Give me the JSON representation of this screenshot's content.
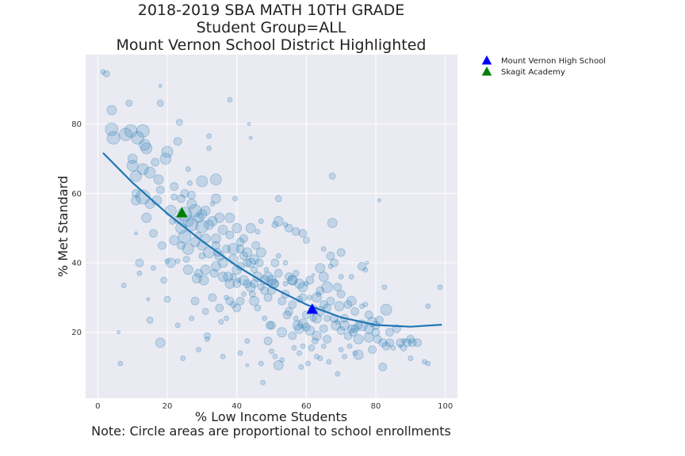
{
  "chart_data": {
    "type": "scatter",
    "title": [
      "2018-2019 SBA MATH 10TH GRADE",
      "Student Group=ALL",
      "Mount Vernon School District Highlighted"
    ],
    "xlabel": "% Low Income Students",
    "footnote": "Note: Circle areas are proportional to school enrollments",
    "ylabel": "% Met Standard",
    "xlim": [
      -3.5,
      103.5
    ],
    "ylim": [
      1,
      100
    ],
    "xticks": [
      0,
      20,
      40,
      60,
      80,
      100
    ],
    "yticks": [
      20,
      40,
      60,
      80
    ],
    "grid": true,
    "point_color": "#1f77b4",
    "trend_color": "#1f77b4",
    "background": "#eaeaf2",
    "trend_line": {
      "x": [
        1.5,
        10,
        20,
        30,
        40,
        50,
        60,
        70,
        80,
        90,
        99
      ],
      "y": [
        71.7,
        63.1,
        54.2,
        46.3,
        39.1,
        33.0,
        28.0,
        24.3,
        22.1,
        21.6,
        22.2
      ]
    },
    "highlighted": [
      {
        "name": "Mount Vernon High School",
        "x": 61.7,
        "y": 26.5,
        "color": "#0000ff",
        "marker": "triangle"
      },
      {
        "name": "Skagit Academy",
        "x": 24.2,
        "y": 54.3,
        "color": "#008000",
        "marker": "triangle"
      }
    ],
    "legend_position": "outside-upper-right",
    "points": [
      [
        1.5,
        95,
        3
      ],
      [
        2.5,
        94.5,
        4
      ],
      [
        4,
        84,
        6
      ],
      [
        4,
        78.5,
        8
      ],
      [
        4.5,
        76,
        8
      ],
      [
        6,
        20,
        2
      ],
      [
        6.5,
        11,
        3
      ],
      [
        7.5,
        33.5,
        3
      ],
      [
        8,
        77,
        8
      ],
      [
        9.5,
        78,
        8
      ],
      [
        9,
        86,
        4
      ],
      [
        10,
        68,
        7
      ],
      [
        10,
        70,
        6
      ],
      [
        11,
        65,
        7
      ],
      [
        11,
        60,
        5
      ],
      [
        11,
        58,
        6
      ],
      [
        11,
        48.5,
        2
      ],
      [
        11.5,
        76,
        8
      ],
      [
        12,
        40,
        5
      ],
      [
        12,
        37,
        3
      ],
      [
        13,
        78,
        8
      ],
      [
        13,
        67,
        7
      ],
      [
        13,
        59,
        9
      ],
      [
        13.5,
        74,
        7
      ],
      [
        14,
        73,
        7
      ],
      [
        14,
        53,
        6
      ],
      [
        14.5,
        29.5,
        2
      ],
      [
        15,
        66,
        7
      ],
      [
        15,
        57,
        6
      ],
      [
        15,
        23.5,
        4
      ],
      [
        16,
        48.5,
        5
      ],
      [
        16,
        38.5,
        3
      ],
      [
        16.5,
        69,
        5
      ],
      [
        17,
        58,
        6
      ],
      [
        17.5,
        64,
        6
      ],
      [
        18,
        61,
        5
      ],
      [
        18,
        17,
        6
      ],
      [
        18,
        91,
        2
      ],
      [
        18,
        86,
        4
      ],
      [
        18.5,
        45,
        5
      ],
      [
        19,
        35,
        4
      ],
      [
        19.5,
        70,
        7
      ],
      [
        20,
        72,
        7
      ],
      [
        20,
        29.5,
        4
      ],
      [
        20,
        40.5,
        3
      ],
      [
        21,
        55,
        7
      ],
      [
        21,
        40,
        6
      ],
      [
        21.5,
        52,
        4
      ],
      [
        22,
        59,
        4
      ],
      [
        22,
        46.5,
        6
      ],
      [
        22,
        62,
        5
      ],
      [
        23,
        75,
        5
      ],
      [
        23,
        52.5,
        5
      ],
      [
        23,
        40.5,
        3
      ],
      [
        23,
        22,
        3
      ],
      [
        23.5,
        80.5,
        4
      ],
      [
        24,
        58.5,
        5
      ],
      [
        24,
        50,
        7
      ],
      [
        24,
        45,
        5
      ],
      [
        24.5,
        12.5,
        3
      ],
      [
        25,
        54,
        9
      ],
      [
        25,
        60,
        5
      ],
      [
        25,
        47.5,
        8
      ],
      [
        25.5,
        41,
        4
      ],
      [
        26,
        67,
        3
      ],
      [
        26,
        52,
        7
      ],
      [
        26,
        44,
        7
      ],
      [
        26,
        38,
        6
      ],
      [
        26.5,
        63,
        3
      ],
      [
        27,
        57,
        6
      ],
      [
        27,
        51,
        8
      ],
      [
        27,
        24,
        3
      ],
      [
        27,
        59.5,
        5
      ],
      [
        28,
        55,
        8
      ],
      [
        28,
        46,
        6
      ],
      [
        28,
        29,
        5
      ],
      [
        28.5,
        35.5,
        6
      ],
      [
        29,
        53,
        6
      ],
      [
        29,
        48,
        4
      ],
      [
        29,
        37,
        5
      ],
      [
        29,
        15,
        3
      ],
      [
        30,
        63.5,
        7
      ],
      [
        30,
        54,
        6
      ],
      [
        30,
        50.5,
        8
      ],
      [
        30,
        45,
        6
      ],
      [
        30,
        42,
        4
      ],
      [
        30.5,
        35,
        6
      ],
      [
        31,
        55,
        6
      ],
      [
        31,
        47,
        6
      ],
      [
        31,
        38,
        6
      ],
      [
        31,
        26,
        4
      ],
      [
        31.5,
        19,
        4
      ],
      [
        31.5,
        18,
        3
      ],
      [
        32,
        73,
        3
      ],
      [
        32,
        76.5,
        3
      ],
      [
        32,
        51,
        6
      ],
      [
        32,
        43,
        7
      ],
      [
        33,
        57,
        3
      ],
      [
        33,
        52,
        6
      ],
      [
        33,
        30,
        5
      ],
      [
        33.5,
        37,
        5
      ],
      [
        34,
        64,
        7
      ],
      [
        34,
        58.5,
        6
      ],
      [
        34,
        47,
        6
      ],
      [
        34,
        45,
        5
      ],
      [
        34,
        39,
        6
      ],
      [
        34.5,
        43,
        5
      ],
      [
        35,
        53,
        6
      ],
      [
        35,
        42,
        6
      ],
      [
        35,
        27,
        5
      ],
      [
        35.5,
        23,
        3
      ],
      [
        36,
        49.5,
        6
      ],
      [
        36,
        40,
        6
      ],
      [
        36,
        36,
        6
      ],
      [
        36,
        13,
        3
      ],
      [
        37,
        44,
        5
      ],
      [
        37,
        30,
        3
      ],
      [
        37,
        24,
        3
      ],
      [
        37.5,
        36,
        6
      ],
      [
        38,
        87,
        3
      ],
      [
        38,
        53,
        6
      ],
      [
        38,
        48,
        5
      ],
      [
        38,
        34,
        6
      ],
      [
        38,
        29,
        5
      ],
      [
        39,
        44,
        7
      ],
      [
        39,
        41,
        6
      ],
      [
        39,
        36,
        4
      ],
      [
        39,
        28,
        4
      ],
      [
        39.5,
        58.5,
        3
      ],
      [
        40,
        50,
        6
      ],
      [
        40,
        38,
        6
      ],
      [
        40,
        34,
        5
      ],
      [
        40,
        27,
        5
      ],
      [
        40.5,
        35,
        3
      ],
      [
        41,
        44,
        5
      ],
      [
        41,
        46,
        5
      ],
      [
        41,
        39,
        5
      ],
      [
        41,
        29,
        5
      ],
      [
        41,
        14,
        3
      ],
      [
        42,
        47,
        5
      ],
      [
        42,
        42,
        5
      ],
      [
        42,
        35,
        6
      ],
      [
        42,
        31,
        3
      ],
      [
        43,
        43,
        6
      ],
      [
        43,
        40,
        5
      ],
      [
        43,
        34,
        5
      ],
      [
        43,
        17.5,
        3
      ],
      [
        43,
        10.5,
        2
      ],
      [
        43.5,
        80,
        2
      ],
      [
        44,
        76,
        2
      ],
      [
        44,
        50,
        6
      ],
      [
        44,
        40,
        6
      ],
      [
        44,
        33,
        6
      ],
      [
        44.5,
        31,
        4
      ],
      [
        45,
        41,
        6
      ],
      [
        45,
        38,
        4
      ],
      [
        45,
        34,
        5
      ],
      [
        45,
        29,
        6
      ],
      [
        45.5,
        45,
        5
      ],
      [
        46,
        49,
        3
      ],
      [
        46,
        36,
        6
      ],
      [
        46,
        27,
        4
      ],
      [
        46.5,
        40,
        5
      ],
      [
        47,
        52,
        3
      ],
      [
        47,
        43,
        6
      ],
      [
        47,
        33,
        4
      ],
      [
        47,
        11,
        3
      ],
      [
        47.5,
        5.5,
        3
      ],
      [
        48,
        35,
        6
      ],
      [
        48,
        32,
        5
      ],
      [
        48,
        24,
        3
      ],
      [
        48.5,
        38,
        3
      ],
      [
        49,
        36,
        6
      ],
      [
        49,
        30,
        5
      ],
      [
        49,
        17.5,
        5
      ],
      [
        49.5,
        22,
        5
      ],
      [
        50,
        35,
        6
      ],
      [
        50,
        32,
        5
      ],
      [
        50,
        22,
        5
      ],
      [
        50,
        14.5,
        3
      ],
      [
        50.5,
        34,
        6
      ],
      [
        51,
        51,
        4
      ],
      [
        51,
        40,
        5
      ],
      [
        51,
        34,
        5
      ],
      [
        51,
        13,
        3
      ],
      [
        52,
        58.5,
        4
      ],
      [
        52,
        52,
        6
      ],
      [
        52,
        42,
        3
      ],
      [
        52,
        37,
        5
      ],
      [
        52,
        10.5,
        6
      ],
      [
        53,
        29,
        5
      ],
      [
        53,
        20,
        6
      ],
      [
        53,
        12,
        3
      ],
      [
        54,
        51,
        3
      ],
      [
        54,
        40,
        3
      ],
      [
        54,
        34,
        3
      ],
      [
        54,
        31,
        5
      ],
      [
        54.5,
        25,
        5
      ],
      [
        55,
        50,
        5
      ],
      [
        55,
        36,
        5
      ],
      [
        55,
        26,
        5
      ],
      [
        56,
        35,
        6
      ],
      [
        56,
        35,
        6
      ],
      [
        56,
        28,
        5
      ],
      [
        56,
        19,
        5
      ],
      [
        56.5,
        15.5,
        3
      ],
      [
        57,
        49,
        5
      ],
      [
        57,
        37,
        4
      ],
      [
        57,
        24,
        3
      ],
      [
        57.5,
        22,
        6
      ],
      [
        58,
        34,
        6
      ],
      [
        58,
        29.5,
        4
      ],
      [
        58,
        21,
        6
      ],
      [
        58,
        14,
        3
      ],
      [
        58.5,
        10,
        3
      ],
      [
        59,
        48.5,
        5
      ],
      [
        59,
        33,
        6
      ],
      [
        59,
        30,
        5
      ],
      [
        59,
        22.5,
        6
      ],
      [
        59,
        16,
        3
      ],
      [
        60,
        46.5,
        4
      ],
      [
        60,
        34,
        3
      ],
      [
        60,
        25,
        5
      ],
      [
        60,
        21.5,
        5
      ],
      [
        60.5,
        11,
        3
      ],
      [
        61,
        35,
        5
      ],
      [
        61,
        30,
        3
      ],
      [
        61,
        20.5,
        6
      ],
      [
        61.5,
        15.5,
        4
      ],
      [
        62,
        26.5,
        6
      ],
      [
        62,
        24,
        4
      ],
      [
        62,
        36.5,
        2
      ],
      [
        62.5,
        17.5,
        4
      ],
      [
        63,
        30,
        6
      ],
      [
        63,
        24,
        6
      ],
      [
        63,
        19,
        6
      ],
      [
        63,
        13,
        3
      ],
      [
        63.5,
        31,
        3
      ],
      [
        64,
        38.5,
        6
      ],
      [
        64,
        32,
        5
      ],
      [
        64,
        26,
        6
      ],
      [
        64,
        12.5,
        3
      ],
      [
        65,
        44,
        3
      ],
      [
        65,
        36,
        6
      ],
      [
        65,
        28,
        5
      ],
      [
        65,
        21,
        5
      ],
      [
        65,
        16,
        3
      ],
      [
        66,
        33,
        7
      ],
      [
        66,
        27,
        5
      ],
      [
        66,
        24,
        4
      ],
      [
        66,
        18,
        5
      ],
      [
        66.5,
        11.5,
        3
      ],
      [
        67,
        39,
        3
      ],
      [
        67,
        29,
        5
      ],
      [
        67,
        42,
        5
      ],
      [
        67.5,
        51.5,
        6
      ],
      [
        67.5,
        65,
        4
      ],
      [
        68,
        40,
        5
      ],
      [
        68,
        24,
        5
      ],
      [
        68.5,
        22,
        6
      ],
      [
        69,
        33,
        5
      ],
      [
        69,
        23,
        3
      ],
      [
        69,
        8,
        3
      ],
      [
        69.5,
        27.5,
        6
      ],
      [
        70,
        43,
        5
      ],
      [
        70,
        36,
        3
      ],
      [
        70,
        31,
        5
      ],
      [
        70,
        20.5,
        5
      ],
      [
        70,
        15,
        3
      ],
      [
        71,
        22,
        6
      ],
      [
        71,
        24,
        5
      ],
      [
        71,
        13,
        3
      ],
      [
        72,
        19,
        5
      ],
      [
        72,
        28,
        5
      ],
      [
        72.5,
        16,
        3
      ],
      [
        73,
        29,
        6
      ],
      [
        73,
        36,
        3
      ],
      [
        73,
        21,
        5
      ],
      [
        73.5,
        20,
        5
      ],
      [
        74,
        26,
        5
      ],
      [
        74,
        21,
        5
      ],
      [
        74,
        14,
        3
      ],
      [
        75,
        18,
        6
      ],
      [
        75,
        22,
        5
      ],
      [
        75,
        13.5,
        6
      ],
      [
        76,
        39,
        5
      ],
      [
        76,
        27.5,
        3
      ],
      [
        76,
        22,
        7
      ],
      [
        77,
        38,
        3
      ],
      [
        77,
        28,
        3
      ],
      [
        77.5,
        40,
        2
      ],
      [
        78,
        21,
        6
      ],
      [
        78,
        25,
        5
      ],
      [
        78,
        18.5,
        6
      ],
      [
        79,
        23,
        6
      ],
      [
        79,
        15,
        5
      ],
      [
        80,
        20,
        5
      ],
      [
        80,
        22,
        5
      ],
      [
        80.5,
        18,
        5
      ],
      [
        81,
        58,
        2
      ],
      [
        81,
        23.5,
        5
      ],
      [
        82,
        17,
        5
      ],
      [
        82,
        10,
        5
      ],
      [
        82.5,
        33,
        3
      ],
      [
        83,
        26.5,
        7
      ],
      [
        83,
        16,
        5
      ],
      [
        84,
        17,
        5
      ],
      [
        84,
        20,
        5
      ],
      [
        85,
        15.5,
        3
      ],
      [
        86,
        21,
        5
      ],
      [
        87,
        17,
        5
      ],
      [
        87,
        16,
        2
      ],
      [
        88,
        15.5,
        4
      ],
      [
        88,
        17.5,
        3
      ],
      [
        89,
        17,
        5
      ],
      [
        90,
        18,
        5
      ],
      [
        90,
        12.5,
        3
      ],
      [
        90.5,
        17,
        5
      ],
      [
        92,
        17,
        5
      ],
      [
        94,
        11.5,
        3
      ],
      [
        95,
        27.5,
        3
      ],
      [
        95,
        11,
        3
      ],
      [
        98.5,
        33,
        3
      ]
    ]
  }
}
